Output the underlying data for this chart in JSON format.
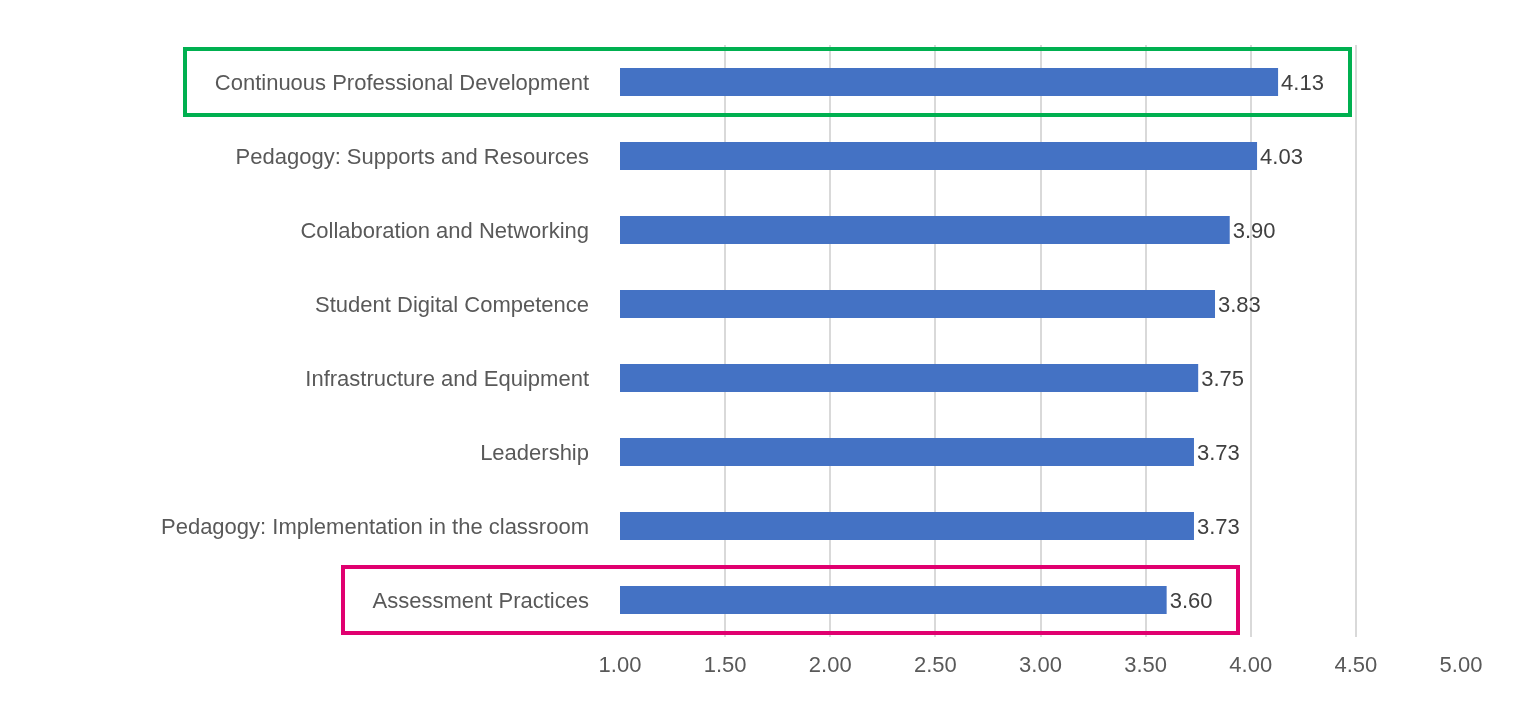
{
  "chart_data": {
    "type": "bar",
    "orientation": "horizontal",
    "categories": [
      "Continuous Professional Development",
      "Pedagogy: Supports and Resources",
      "Collaboration and Networking",
      "Student Digital Competence",
      "Infrastructure and Equipment",
      "Leadership",
      "Pedagogy: Implementation in the classroom",
      "Assessment Practices"
    ],
    "values": [
      4.13,
      4.03,
      3.9,
      3.83,
      3.75,
      3.73,
      3.73,
      3.6
    ],
    "value_labels": [
      "4.13",
      "4.03",
      "3.90",
      "3.83",
      "3.75",
      "3.73",
      "3.73",
      "3.60"
    ],
    "color": "#4472c4",
    "xlim": [
      1,
      5
    ],
    "xticks": [
      {
        "value": 1,
        "label": "1.00"
      },
      {
        "value": 1.5,
        "label": "1.50"
      },
      {
        "value": 2,
        "label": "2.00"
      },
      {
        "value": 2.5,
        "label": "2.50"
      },
      {
        "value": 3,
        "label": "3.00"
      },
      {
        "value": 3.5,
        "label": "3.50"
      },
      {
        "value": 4,
        "label": "4.00"
      },
      {
        "value": 4.5,
        "label": "4.50"
      },
      {
        "value": 5,
        "label": "5.00"
      }
    ],
    "grid": "x"
  }
}
